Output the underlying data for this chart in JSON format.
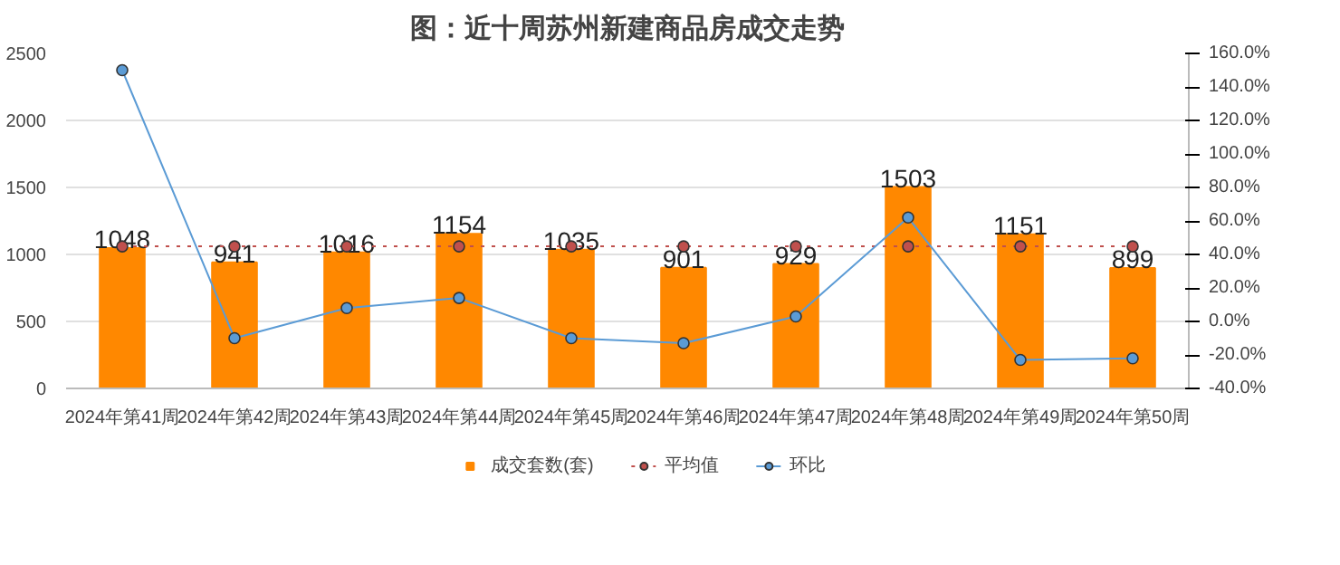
{
  "chart_data": {
    "type": "bar",
    "title": "图：近十周苏州新建商品房成交走势",
    "categories": [
      "2024年第41周",
      "2024年第42周",
      "2024年第43周",
      "2024年第44周",
      "2024年第45周",
      "2024年第46周",
      "2024年第47周",
      "2024年第48周",
      "2024年第49周",
      "2024年第50周"
    ],
    "series": [
      {
        "name": "成交套数(套)",
        "color": "#ff8800",
        "values": [
          1048,
          941,
          1016,
          1154,
          1035,
          901,
          929,
          1503,
          1151,
          899
        ],
        "value_labels": [
          "1048",
          "941",
          "1016",
          "1154",
          "1035",
          "901",
          "929",
          "1503",
          "1151",
          "899"
        ]
      },
      {
        "name": "平均值",
        "type": "line",
        "color": "#c0504d",
        "line_style": "dotted",
        "marker": "circle",
        "values": [
          1060,
          1060,
          1060,
          1060,
          1060,
          1060,
          1060,
          1060,
          1060,
          1060
        ]
      },
      {
        "name": "环比",
        "type": "line",
        "axis": "y2",
        "color": "#5b9bd5",
        "line_style": "solid",
        "marker": "circle",
        "values": [
          150,
          -10,
          8,
          14,
          -10,
          -13,
          3,
          62,
          -23,
          -22
        ]
      }
    ],
    "ylim": [
      0,
      2500
    ],
    "yticks": [
      0,
      500,
      1000,
      1500,
      2000,
      2500
    ],
    "y2lim": [
      -40,
      160
    ],
    "y2ticks": [
      {
        "value": -40,
        "label": "-40.0%"
      },
      {
        "value": -20,
        "label": "-20.0%"
      },
      {
        "value": 0,
        "label": "0.0%"
      },
      {
        "value": 20,
        "label": "20.0%"
      },
      {
        "value": 40,
        "label": "40.0%"
      },
      {
        "value": 60,
        "label": "60.0%"
      },
      {
        "value": 80,
        "label": "80.0%"
      },
      {
        "value": 100,
        "label": "100.0%"
      },
      {
        "value": 120,
        "label": "120.0%"
      },
      {
        "value": 140,
        "label": "140.0%"
      },
      {
        "value": 160,
        "label": "160.0%"
      }
    ],
    "grid": "y",
    "legend": "bottom"
  }
}
